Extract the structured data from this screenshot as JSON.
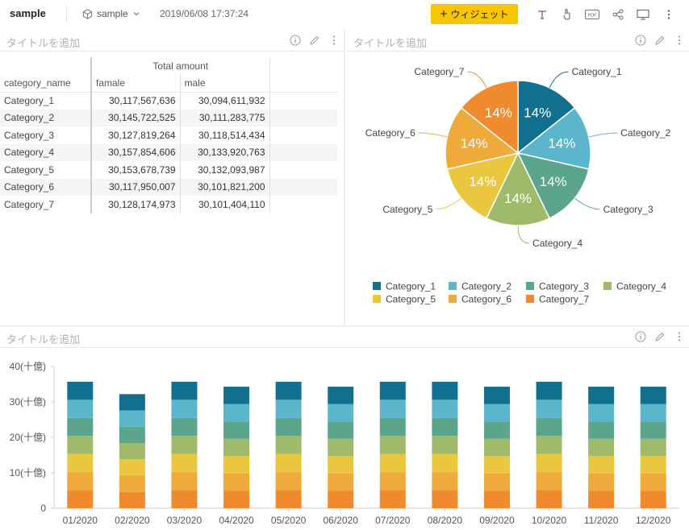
{
  "header": {
    "title": "sample",
    "board_name": "sample",
    "datetime": "2019/06/08 17:37:24",
    "widget_button": "ウィジェット",
    "icons": [
      "text-icon",
      "hand-icon",
      "pdf-icon",
      "share-icon",
      "screen-icon",
      "more-icon"
    ],
    "pdf_label": "PDF"
  },
  "panels": {
    "table_title": "タイトルを追加",
    "pie_title": "タイトルを追加",
    "bar_title": "タイトルを追加"
  },
  "table": {
    "group_header": "Total amount",
    "columns": [
      "category_name",
      "famale",
      "male"
    ],
    "rows": [
      [
        "Category_1",
        "30,117,567,636",
        "30,094,611,932"
      ],
      [
        "Category_2",
        "30,145,722,525",
        "30,111,283,775"
      ],
      [
        "Category_3",
        "30,127,819,264",
        "30,118,514,434"
      ],
      [
        "Category_4",
        "30,157,854,606",
        "30,133,920,763"
      ],
      [
        "Category_5",
        "30,153,678,739",
        "30,132,093,987"
      ],
      [
        "Category_6",
        "30,117,950,007",
        "30,101,821,200"
      ],
      [
        "Category_7",
        "30,128,174,973",
        "30,101,404,110"
      ]
    ]
  },
  "colors": {
    "Category_1": "#12708f",
    "Category_2": "#5bb6cc",
    "Category_3": "#5aa58b",
    "Category_4": "#9fba6b",
    "Category_5": "#eac73f",
    "Category_6": "#efaa3c",
    "Category_7": "#ef8a2e",
    "accent": "#f7c600"
  },
  "chart_data": [
    {
      "type": "pie",
      "categories": [
        "Category_1",
        "Category_2",
        "Category_3",
        "Category_4",
        "Category_5",
        "Category_6",
        "Category_7"
      ],
      "values": [
        14.28,
        14.29,
        14.28,
        14.3,
        14.3,
        14.28,
        14.28
      ],
      "slice_labels": [
        "14%",
        "14%",
        "14%",
        "14%",
        "14%",
        "14%",
        "14%"
      ],
      "legend": "bottom",
      "title": ""
    },
    {
      "type": "bar",
      "stacked": true,
      "categories": [
        "01/2020",
        "02/2020",
        "03/2020",
        "04/2020",
        "05/2020",
        "06/2020",
        "07/2020",
        "08/2020",
        "09/2020",
        "10/2020",
        "11/2020",
        "12/2020"
      ],
      "series": [
        {
          "name": "Category_7",
          "values": [
            5.1,
            4.6,
            5.1,
            4.9,
            5.1,
            4.9,
            5.1,
            5.1,
            4.9,
            5.1,
            4.9,
            4.9
          ]
        },
        {
          "name": "Category_6",
          "values": [
            5.1,
            4.6,
            5.1,
            4.9,
            5.1,
            4.9,
            5.1,
            5.1,
            4.9,
            5.1,
            4.9,
            4.9
          ]
        },
        {
          "name": "Category_5",
          "values": [
            5.1,
            4.6,
            5.1,
            4.9,
            5.1,
            4.9,
            5.1,
            5.1,
            4.9,
            5.1,
            4.9,
            4.9
          ]
        },
        {
          "name": "Category_4",
          "values": [
            5.1,
            4.6,
            5.1,
            4.9,
            5.1,
            4.9,
            5.1,
            5.1,
            4.9,
            5.1,
            4.9,
            4.9
          ]
        },
        {
          "name": "Category_3",
          "values": [
            5.1,
            4.6,
            5.1,
            4.9,
            5.1,
            4.9,
            5.1,
            5.1,
            4.9,
            5.1,
            4.9,
            4.9
          ]
        },
        {
          "name": "Category_2",
          "values": [
            5.1,
            4.6,
            5.1,
            4.9,
            5.1,
            4.9,
            5.1,
            5.1,
            4.9,
            5.1,
            4.9,
            4.9
          ]
        },
        {
          "name": "Category_1",
          "values": [
            5.1,
            4.6,
            5.1,
            4.9,
            5.1,
            4.9,
            5.1,
            5.1,
            4.9,
            5.1,
            4.9,
            4.9
          ]
        }
      ],
      "ylim": [
        0,
        40
      ],
      "yticks": [
        "0",
        "10(十億)",
        "20(十億)",
        "30(十億)",
        "40(十億)"
      ],
      "grid": false,
      "title": ""
    }
  ]
}
